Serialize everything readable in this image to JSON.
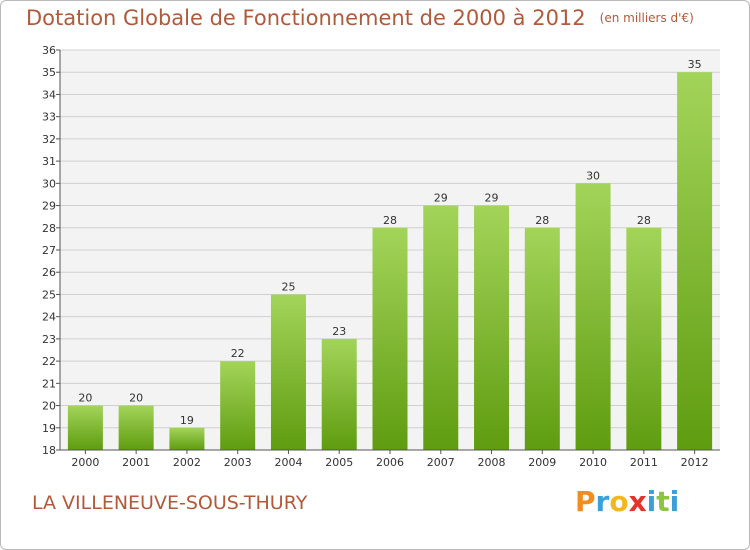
{
  "header": {
    "title": "Dotation Globale de Fonctionnement de 2000 à 2012",
    "subtitle": "(en milliers d'€)"
  },
  "footer": {
    "commune": "LA VILLENEUVE-SOUS-THURY"
  },
  "logo": {
    "text": "Proxiti",
    "letters": [
      {
        "ch": "P",
        "color": "#f28c1e"
      },
      {
        "ch": "r",
        "color": "#3aa0d8"
      },
      {
        "ch": "o",
        "color": "#f2b81e"
      },
      {
        "ch": "x",
        "color": "#e2342b"
      },
      {
        "ch": "i",
        "color": "#3aa0d8"
      },
      {
        "ch": "t",
        "color": "#8cc63e"
      },
      {
        "ch": "i",
        "color": "#3aa0d8"
      }
    ]
  },
  "colors": {
    "title": "#b05a3a",
    "bar_top": "#a3d45a",
    "bar_bottom": "#5f9c10",
    "plot_bg": "#f3f3f3",
    "grid": "#d0d0d0"
  },
  "chart_data": {
    "type": "bar",
    "categories": [
      "2000",
      "2001",
      "2002",
      "2003",
      "2004",
      "2005",
      "2006",
      "2007",
      "2008",
      "2009",
      "2010",
      "2011",
      "2012"
    ],
    "values": [
      20,
      20,
      19,
      22,
      25,
      23,
      28,
      29,
      29,
      28,
      30,
      28,
      35
    ],
    "ylim": [
      18,
      36
    ],
    "yticks": [
      18,
      19,
      20,
      21,
      22,
      23,
      24,
      25,
      26,
      27,
      28,
      29,
      30,
      31,
      32,
      33,
      34,
      35,
      36
    ],
    "grid": true,
    "data_labels": true
  }
}
